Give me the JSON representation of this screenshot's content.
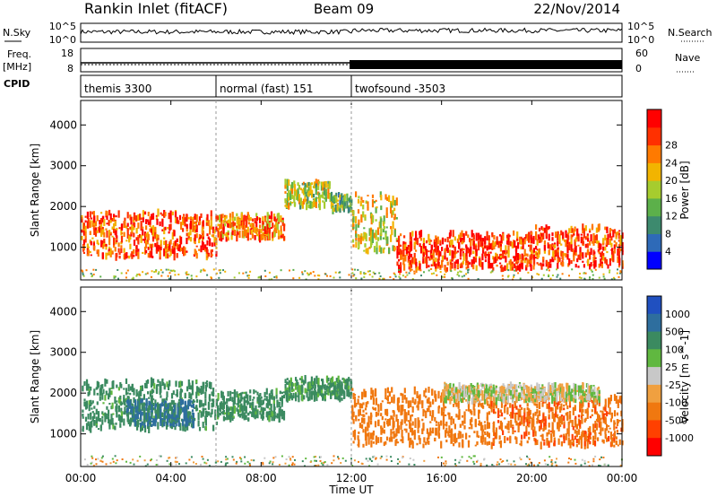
{
  "header": {
    "station": "Rankin Inlet (fitACF)",
    "beam": "Beam 09",
    "date": "22/Nov/2014"
  },
  "strip_labels": {
    "nsky": "N.Sky",
    "nsearch": "N.Search",
    "freq": "Freq.",
    "freq_unit": "[MHz]",
    "nave": "Nave",
    "cpid": "CPID",
    "sky_ticks": [
      "10^5",
      "10^0"
    ],
    "search_ticks": [
      "10^5",
      "10^0"
    ],
    "freq_ticks": [
      "18",
      "8"
    ],
    "nave_ticks": [
      "60",
      "0"
    ]
  },
  "cpid_segments": [
    {
      "label": "themis 3300",
      "start_hour": 0.0,
      "end_hour": 6.0
    },
    {
      "label": "normal (fast) 151",
      "start_hour": 6.0,
      "end_hour": 12.0
    },
    {
      "label": "twofsound -3503",
      "start_hour": 12.0,
      "end_hour": 24.0
    }
  ],
  "time_axis": {
    "label": "Time UT",
    "ticks": [
      "00:00",
      "04:00",
      "08:00",
      "12:00",
      "16:00",
      "20:00",
      "00:00"
    ],
    "tick_hours": [
      0,
      4,
      8,
      12,
      16,
      20,
      24
    ]
  },
  "range_axis": {
    "label": "Slant Range [km]",
    "ticks": [
      "1000",
      "2000",
      "3000",
      "4000"
    ],
    "tick_values": [
      1000,
      2000,
      3000,
      4000
    ],
    "range": [
      200,
      4600
    ]
  },
  "power_scale": {
    "label": "Power [dB]",
    "ticks": [
      "4",
      "8",
      "12",
      "16",
      "20",
      "24",
      "28"
    ],
    "colors": [
      "#0000ff",
      "#2e6ab8",
      "#3d8a6e",
      "#5cb04a",
      "#a6cc2e",
      "#f2b400",
      "#ff7a00",
      "#ff3000",
      "#ff0000"
    ]
  },
  "velocity_scale": {
    "label": "Velocity [m s^-1]",
    "ticks": [
      "1000",
      "500",
      "100",
      "25",
      "-25",
      "-100",
      "-500",
      "-1000"
    ],
    "colors": [
      "#2050c0",
      "#2e6e9e",
      "#3b8a60",
      "#60b840",
      "#c8c8c8",
      "#f0a040",
      "#f07810",
      "#ff4000",
      "#ff0000"
    ]
  },
  "chart_data": [
    {
      "type": "heatmap",
      "quantity": "Power",
      "unit": "dB",
      "xlabel": "Time UT",
      "ylabel": "Slant Range [km]",
      "x_range_hours": [
        0,
        24
      ],
      "y_range_km": [
        200,
        4600
      ],
      "scatter_regions": [
        {
          "start_hour": 0.0,
          "end_hour": 6.0,
          "center_km": 1300,
          "half_width_km": 550,
          "power_db": 26
        },
        {
          "start_hour": 6.0,
          "end_hour": 9.0,
          "center_km": 1500,
          "half_width_km": 300,
          "power_db": 24
        },
        {
          "start_hour": 9.0,
          "end_hour": 11.0,
          "center_km": 2300,
          "half_width_km": 300,
          "power_db": 16
        },
        {
          "start_hour": 11.0,
          "end_hour": 12.0,
          "center_km": 2100,
          "half_width_km": 200,
          "power_db": 12
        },
        {
          "start_hour": 12.0,
          "end_hour": 14.0,
          "center_km": 1600,
          "half_width_km": 700,
          "power_db": 18
        },
        {
          "start_hour": 14.0,
          "end_hour": 20.0,
          "center_km": 900,
          "half_width_km": 450,
          "power_db": 28
        },
        {
          "start_hour": 20.0,
          "end_hour": 24.0,
          "center_km": 1000,
          "half_width_km": 500,
          "power_db": 28
        }
      ]
    },
    {
      "type": "heatmap",
      "quantity": "Velocity",
      "unit": "m/s",
      "xlabel": "Time UT",
      "ylabel": "Slant Range [km]",
      "x_range_hours": [
        0,
        24
      ],
      "y_range_km": [
        200,
        4600
      ],
      "scatter_regions": [
        {
          "start_hour": 0.0,
          "end_hour": 6.0,
          "center_km": 1700,
          "half_width_km": 600,
          "velocity": 200
        },
        {
          "start_hour": 2.0,
          "end_hour": 5.0,
          "center_km": 1500,
          "half_width_km": 300,
          "velocity": 600
        },
        {
          "start_hour": 6.0,
          "end_hour": 9.0,
          "center_km": 1700,
          "half_width_km": 350,
          "velocity": 200
        },
        {
          "start_hour": 9.0,
          "end_hour": 12.0,
          "center_km": 2100,
          "half_width_km": 250,
          "velocity": 150
        },
        {
          "start_hour": 12.0,
          "end_hour": 18.0,
          "center_km": 1400,
          "half_width_km": 700,
          "velocity": -300
        },
        {
          "start_hour": 18.0,
          "end_hour": 24.0,
          "center_km": 1300,
          "half_width_km": 600,
          "velocity": -400
        },
        {
          "start_hour": 16.0,
          "end_hour": 23.0,
          "center_km": 2000,
          "half_width_km": 200,
          "velocity": 0
        }
      ]
    }
  ]
}
